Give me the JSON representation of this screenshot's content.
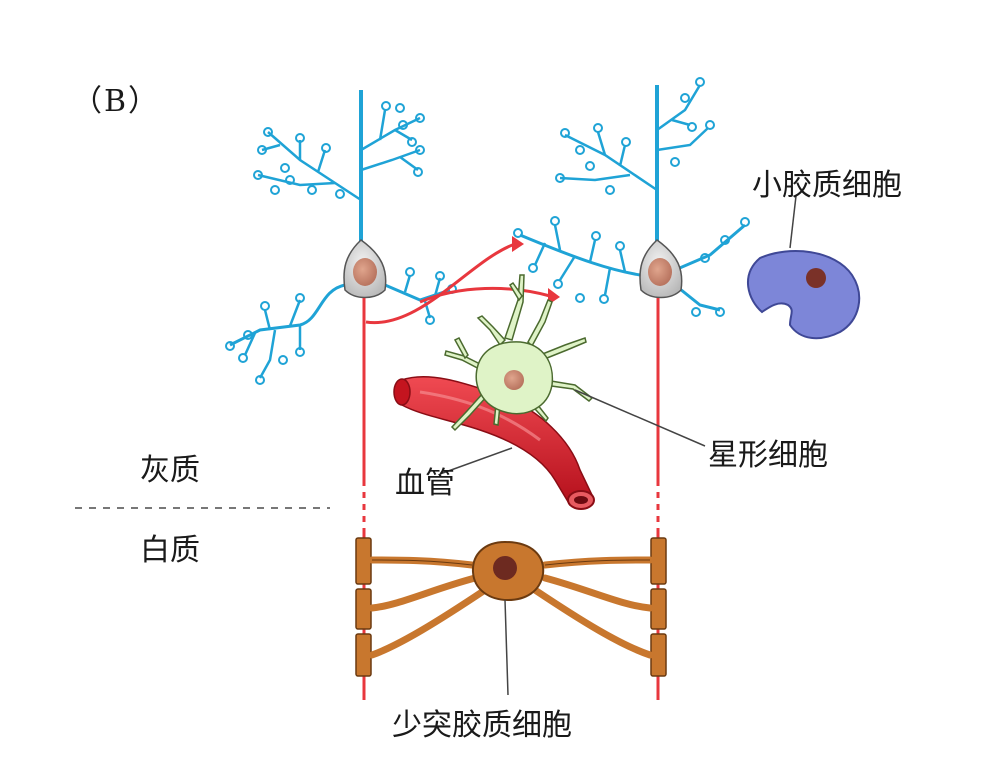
{
  "diagram": {
    "panel_label": "（B）",
    "labels": {
      "gray_matter": "灰质",
      "white_matter": "白质",
      "blood_vessel": "血管",
      "astrocyte": "星形细胞",
      "microglia": "小胶质细胞",
      "oligodendrocyte": "少突胶质细胞"
    },
    "colors": {
      "neuron_dendrite": "#1fa3d6",
      "neuron_body": "#d9d9d9",
      "nucleus": "#c98a73",
      "axon": "#e8373e",
      "astrocyte": "#dff3c7",
      "blood_vessel": "#d81e2a",
      "microglia": "#7d86d8",
      "oligodendrocyte": "#c8772e"
    }
  }
}
